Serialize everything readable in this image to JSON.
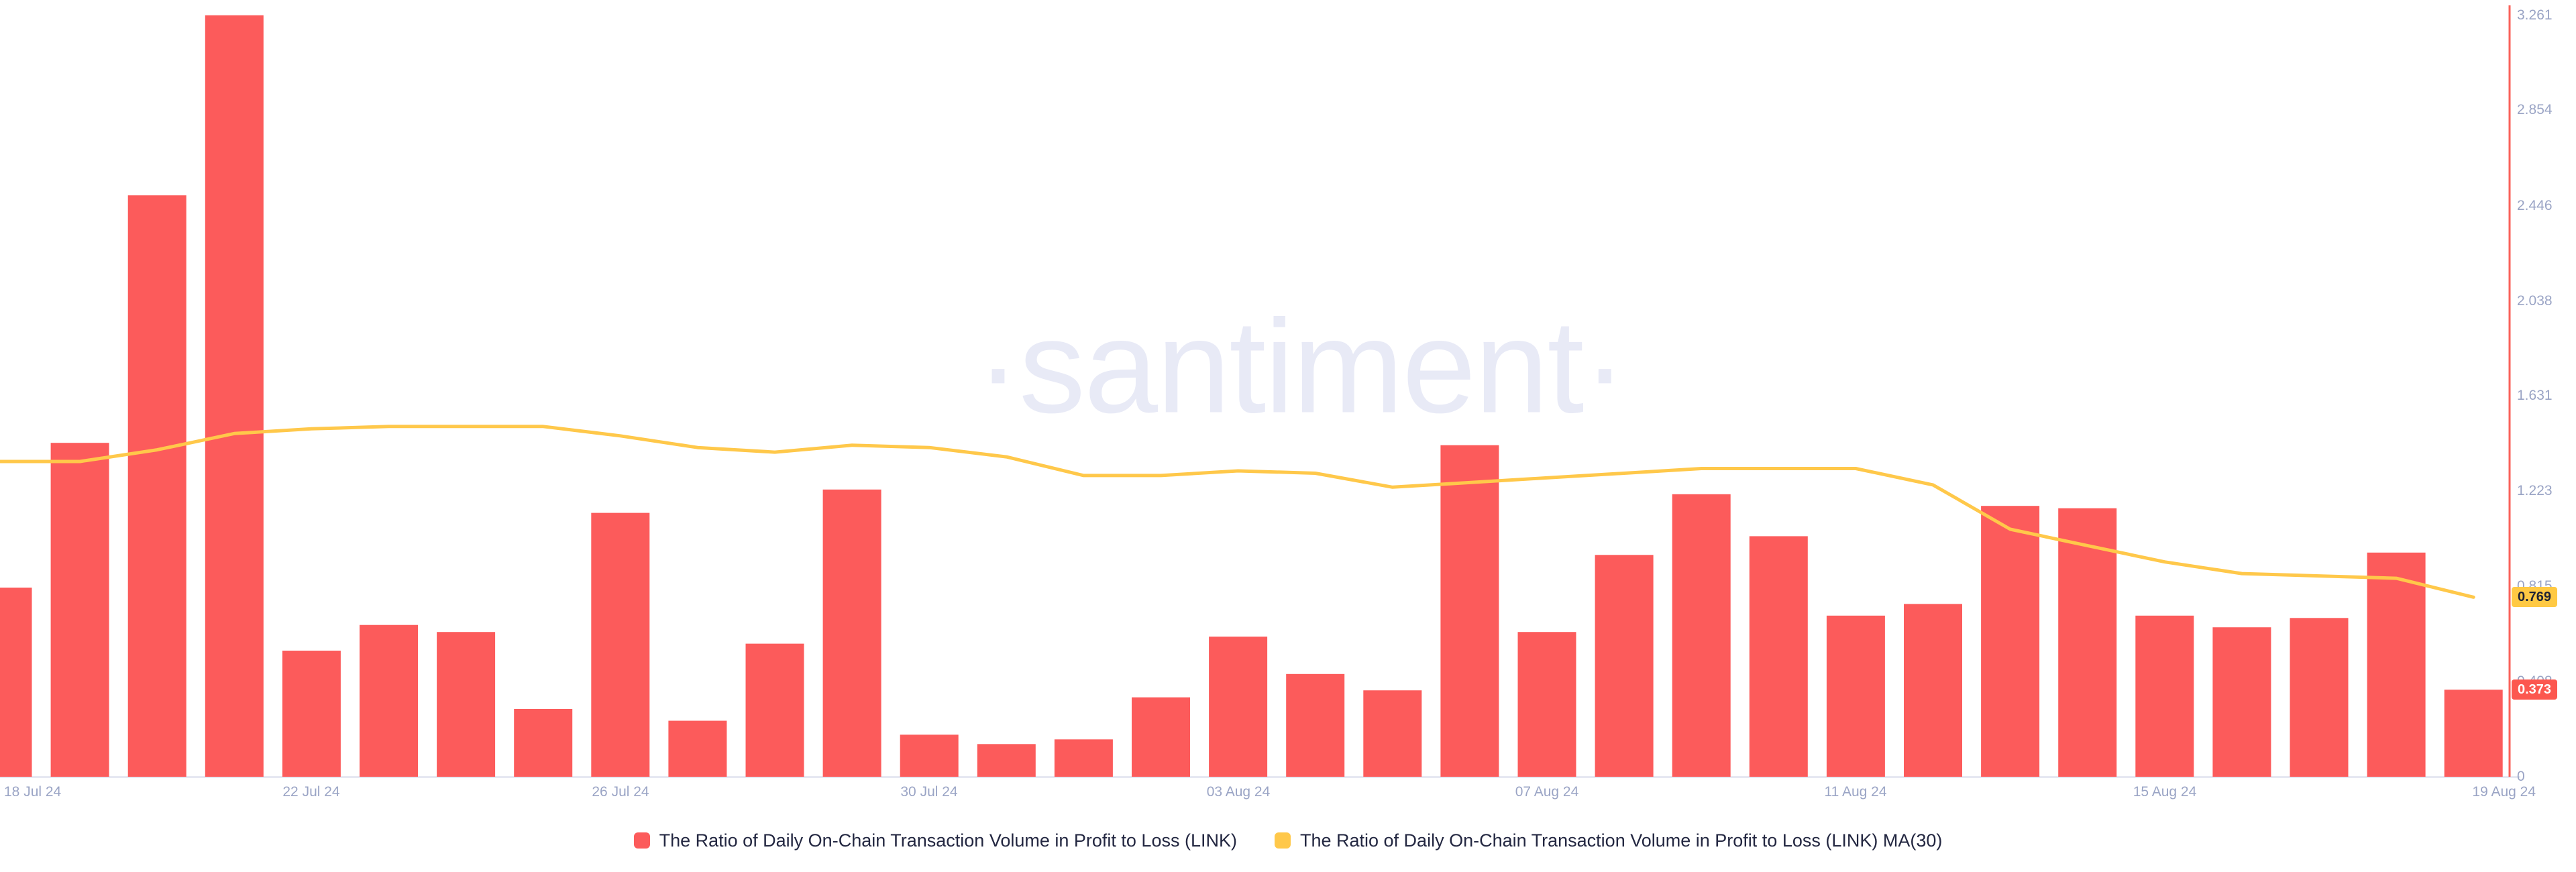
{
  "watermark": {
    "text": "·santiment·"
  },
  "legend": [
    {
      "label": "The Ratio of Daily On-Chain Transaction Volume in Profit to Loss (LINK)",
      "color": "#fc5b5b"
    },
    {
      "label": "The Ratio of Daily On-Chain Transaction Volume in Profit to Loss (LINK) MA(30)",
      "color": "#ffc84a"
    }
  ],
  "tags": {
    "ma_last": "0.769",
    "bar_last": "0.373"
  },
  "colors": {
    "bar": "#fc5b5b",
    "ma_line": "#ffc84a",
    "y_axis_line": "#fa6159",
    "baseline": "#e6e8f2",
    "tick_text": "#9aa4c5",
    "legend_text": "#232741",
    "tag_ma_bg": "#ffc943",
    "tag_bar_bg": "#fc574f",
    "watermark": "#e8eaf6"
  },
  "chart_data": {
    "type": "bar+line",
    "title": "",
    "xlabel": "",
    "ylabel": "",
    "grid": false,
    "legend_position": "bottom",
    "ylim": [
      0,
      3.261
    ],
    "y_tick_labels": [
      "0",
      "0.408",
      "0.815",
      "1.223",
      "1.631",
      "2.038",
      "2.446",
      "2.854",
      "3.261"
    ],
    "y_tick_values": [
      0,
      0.408,
      0.815,
      1.223,
      1.631,
      2.038,
      2.446,
      2.854,
      3.261
    ],
    "x_tick_labels": [
      "18 Jul 24",
      "22 Jul 24",
      "26 Jul 24",
      "30 Jul 24",
      "03 Aug 24",
      "07 Aug 24",
      "11 Aug 24",
      "15 Aug 24",
      "19 Aug 24"
    ],
    "x_tick_indices": [
      0,
      4,
      8,
      12,
      16,
      20,
      24,
      28,
      32
    ],
    "n_points": 33,
    "series": [
      {
        "name": "The Ratio of Daily On-Chain Transaction Volume in Profit to Loss (LINK)",
        "type": "bar",
        "color": "#fc5b5b",
        "values": [
          0.81,
          1.43,
          2.49,
          3.261,
          0.54,
          0.65,
          0.62,
          0.29,
          1.13,
          0.24,
          0.57,
          1.23,
          0.18,
          0.14,
          0.16,
          0.34,
          0.6,
          0.44,
          0.37,
          1.42,
          0.62,
          0.95,
          1.21,
          1.03,
          0.69,
          0.74,
          1.16,
          1.15,
          0.69,
          0.64,
          0.68,
          0.96,
          0.373
        ]
      },
      {
        "name": "The Ratio of Daily On-Chain Transaction Volume in Profit to Loss (LINK) MA(30)",
        "type": "line",
        "color": "#ffc84a",
        "values": [
          1.35,
          1.35,
          1.4,
          1.47,
          1.49,
          1.5,
          1.5,
          1.5,
          1.46,
          1.41,
          1.39,
          1.42,
          1.41,
          1.37,
          1.29,
          1.29,
          1.31,
          1.3,
          1.24,
          1.26,
          1.28,
          1.3,
          1.32,
          1.32,
          1.32,
          1.25,
          1.06,
          0.99,
          0.92,
          0.87,
          0.86,
          0.85,
          0.769
        ]
      }
    ],
    "last_values": {
      "bar": 0.373,
      "ma": 0.769
    }
  }
}
